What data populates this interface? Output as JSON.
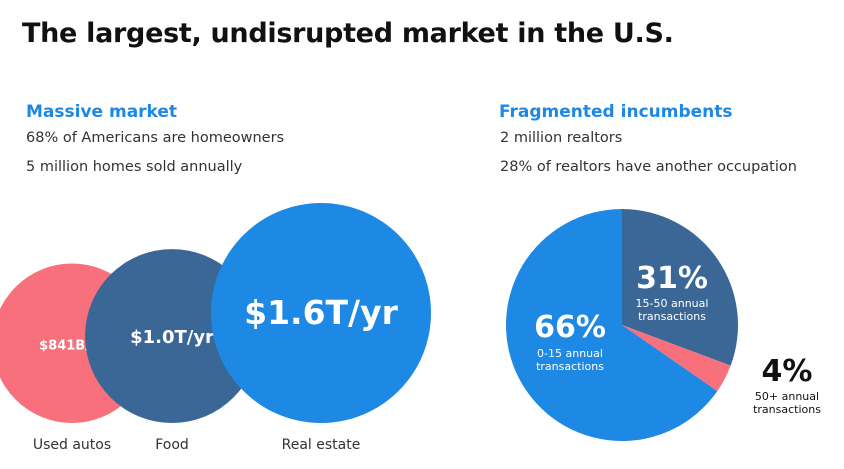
{
  "page": {
    "title": "The largest, undisrupted market in the U.S."
  },
  "left": {
    "heading": "Massive market",
    "lines": [
      "68% of Americans are homeowners",
      "5 million homes sold annually"
    ]
  },
  "right": {
    "heading": "Fragmented incumbents",
    "lines": [
      "2 million realtors",
      "28% of realtors have another occupation"
    ]
  },
  "colors": {
    "accent": "#1e88e5",
    "pink": "#f8707b",
    "navy": "#3b6797",
    "blue": "#1e88e5"
  },
  "chart_data": [
    {
      "type": "bubble",
      "categories": [
        "Used autos",
        "Food",
        "Real estate"
      ],
      "values": [
        0.841,
        1.0,
        1.6
      ],
      "units": "$T/yr",
      "value_labels": [
        "$841B/yr",
        "$1.0T/yr",
        "$1.6T/yr"
      ],
      "colors": [
        "#f8707b",
        "#3b6797",
        "#1e88e5"
      ]
    },
    {
      "type": "pie",
      "slices": [
        {
          "value": 31,
          "label": "31%",
          "sublabel": "15-50 annual transactions",
          "color": "#3b6797"
        },
        {
          "value": 4,
          "label": "4%",
          "sublabel": "50+ annual transactions",
          "color": "#f8707b"
        },
        {
          "value": 66,
          "label": "66%",
          "sublabel": "0-15 annual transactions",
          "color": "#1e88e5"
        }
      ]
    }
  ]
}
